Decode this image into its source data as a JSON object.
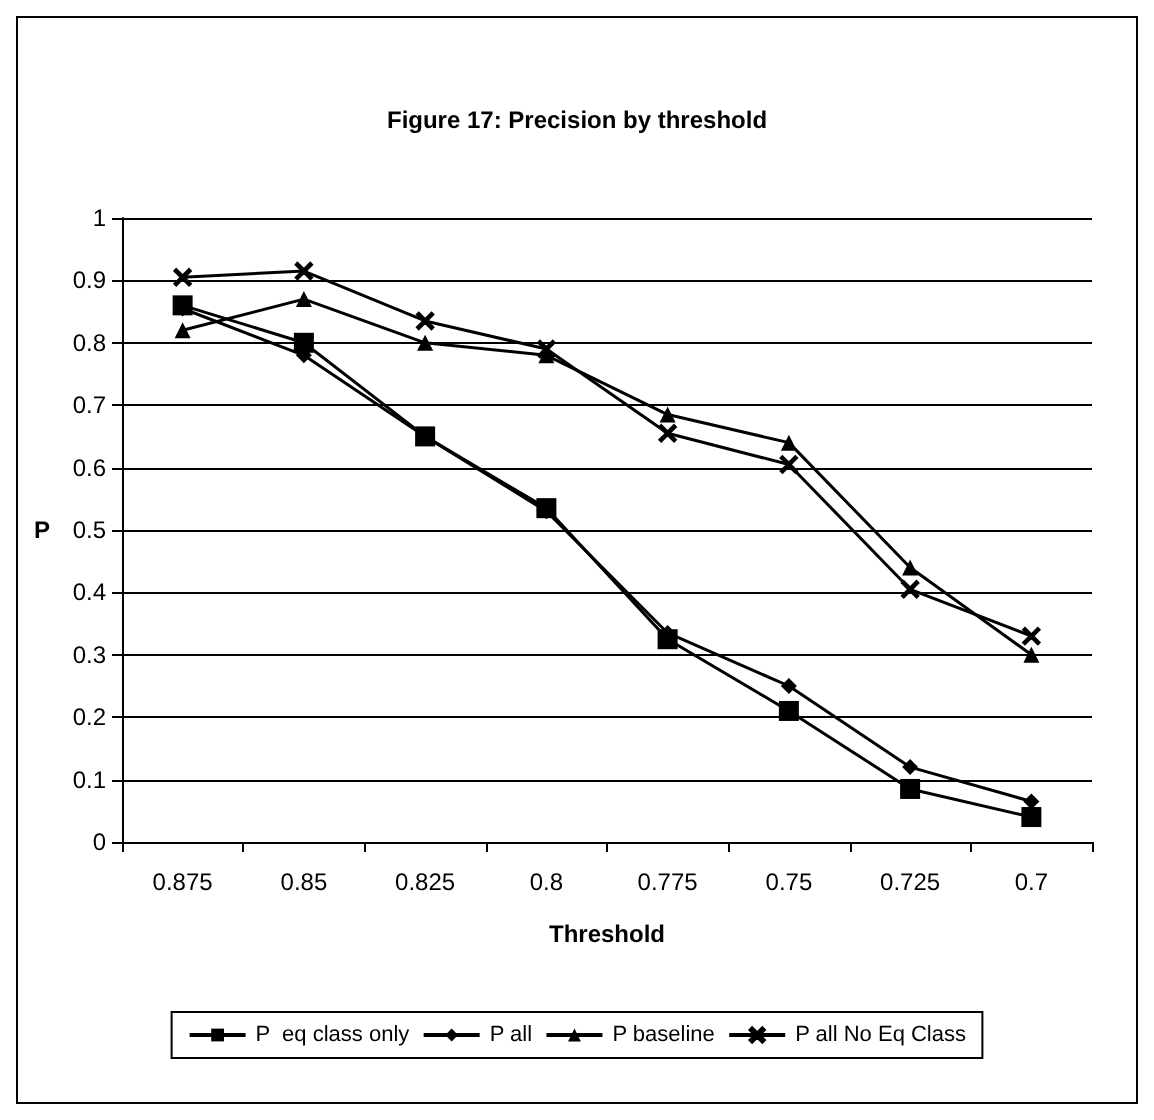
{
  "chart_data": {
    "type": "line",
    "title": "Figure 17: Precision by threshold",
    "xlabel": "Threshold",
    "ylabel": "P",
    "categories": [
      "0.875",
      "0.85",
      "0.825",
      "0.8",
      "0.775",
      "0.75",
      "0.725",
      "0.7"
    ],
    "series": [
      {
        "name": "P  eq class only",
        "color": "#000000",
        "marker": "square",
        "values": [
          0.86,
          0.8,
          0.65,
          0.535,
          0.325,
          0.21,
          0.085,
          0.04
        ]
      },
      {
        "name": "P all",
        "color": "#000000",
        "marker": "diamond",
        "values": [
          0.855,
          0.78,
          0.65,
          0.53,
          0.335,
          0.25,
          0.12,
          0.065
        ]
      },
      {
        "name": "P baseline",
        "color": "#000000",
        "marker": "triangle",
        "values": [
          0.82,
          0.87,
          0.8,
          0.78,
          0.685,
          0.64,
          0.44,
          0.3
        ]
      },
      {
        "name": "P all No Eq Class",
        "color": "#000000",
        "marker": "cross",
        "values": [
          0.905,
          0.915,
          0.835,
          0.79,
          0.655,
          0.605,
          0.405,
          0.33
        ]
      }
    ],
    "ylim": [
      0,
      1
    ],
    "yticks": [
      0,
      0.1,
      0.2,
      0.3,
      0.4,
      0.5,
      0.6,
      0.7,
      0.8,
      0.9,
      1
    ],
    "grid": "y",
    "legend": "bottom"
  }
}
